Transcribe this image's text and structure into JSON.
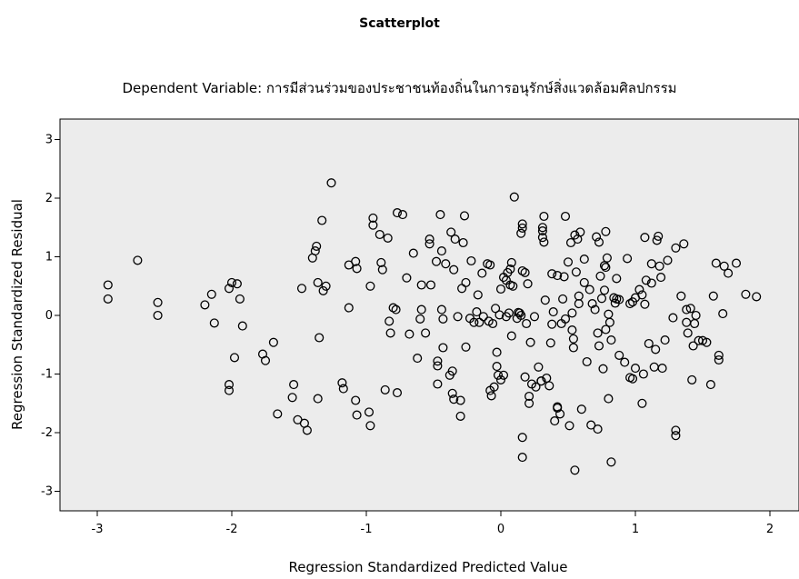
{
  "chart_data": {
    "type": "scatter",
    "title": "Scatterplot",
    "subtitle": "Dependent Variable: การมีส่วนร่วมของประชาชนท้องถิ่นในการอนุรักษ์สิ่งแวดล้อมศิลปกรรม",
    "xlabel": "Regression Standardized Predicted Value",
    "ylabel": "Regression Standardized Residual",
    "xlim": [
      -3.3,
      2.2
    ],
    "ylim": [
      -3.3,
      3.3
    ],
    "xticks": [
      -3,
      -2,
      -1,
      0,
      1,
      2
    ],
    "yticks": [
      -3,
      -2,
      -1,
      0,
      1,
      2,
      3
    ],
    "grid": false,
    "plot_background": "#ececec",
    "marker": "open-circle",
    "marker_color": "#000000",
    "points": [
      [
        -2.92,
        0.52
      ],
      [
        -2.92,
        0.28
      ],
      [
        -2.7,
        0.94
      ],
      [
        -2.55,
        0.22
      ],
      [
        -2.55,
        0.0
      ],
      [
        -2.2,
        0.18
      ],
      [
        -2.15,
        0.36
      ],
      [
        -2.13,
        -0.13
      ],
      [
        -2.02,
        0.46
      ],
      [
        -2.0,
        0.56
      ],
      [
        -1.96,
        0.54
      ],
      [
        -1.94,
        0.28
      ],
      [
        -1.92,
        -0.18
      ],
      [
        -1.98,
        -0.72
      ],
      [
        -2.02,
        -1.18
      ],
      [
        -2.02,
        -1.28
      ],
      [
        -1.77,
        -0.66
      ],
      [
        -1.75,
        -0.77
      ],
      [
        -1.69,
        -0.46
      ],
      [
        -1.66,
        -1.68
      ],
      [
        -1.54,
        -1.18
      ],
      [
        -1.55,
        -1.4
      ],
      [
        -1.51,
        -1.78
      ],
      [
        -1.48,
        0.46
      ],
      [
        -1.46,
        -1.84
      ],
      [
        -1.44,
        -1.96
      ],
      [
        -1.4,
        0.98
      ],
      [
        -1.38,
        1.1
      ],
      [
        -1.37,
        1.18
      ],
      [
        -1.36,
        0.56
      ],
      [
        -1.35,
        -0.38
      ],
      [
        -1.36,
        -1.42
      ],
      [
        -1.32,
        0.42
      ],
      [
        -1.33,
        1.62
      ],
      [
        -1.3,
        0.5
      ],
      [
        -1.26,
        2.26
      ],
      [
        -1.18,
        -1.15
      ],
      [
        -1.17,
        -1.25
      ],
      [
        -1.13,
        0.13
      ],
      [
        -1.13,
        0.86
      ],
      [
        -1.08,
        0.92
      ],
      [
        -1.07,
        0.8
      ],
      [
        -1.08,
        -1.45
      ],
      [
        -1.07,
        -1.7
      ],
      [
        -0.98,
        -1.65
      ],
      [
        -0.97,
        -1.88
      ],
      [
        -0.97,
        0.5
      ],
      [
        -0.95,
        1.54
      ],
      [
        -0.95,
        1.66
      ],
      [
        -0.9,
        1.38
      ],
      [
        -0.89,
        0.9
      ],
      [
        -0.88,
        0.78
      ],
      [
        -0.86,
        -1.27
      ],
      [
        -0.84,
        1.32
      ],
      [
        -0.83,
        -0.1
      ],
      [
        -0.82,
        -0.3
      ],
      [
        -0.8,
        0.13
      ],
      [
        -0.78,
        0.1
      ],
      [
        -0.77,
        -1.32
      ],
      [
        -0.77,
        1.75
      ],
      [
        -0.73,
        1.72
      ],
      [
        -0.7,
        0.64
      ],
      [
        -0.68,
        -0.32
      ],
      [
        -0.65,
        1.06
      ],
      [
        -0.62,
        -0.73
      ],
      [
        -0.6,
        -0.06
      ],
      [
        -0.59,
        0.52
      ],
      [
        -0.59,
        0.1
      ],
      [
        -0.56,
        -0.3
      ],
      [
        -0.53,
        1.3
      ],
      [
        -0.53,
        1.22
      ],
      [
        -0.52,
        0.52
      ],
      [
        -0.48,
        0.92
      ],
      [
        -0.47,
        -0.78
      ],
      [
        -0.47,
        -0.86
      ],
      [
        -0.47,
        -1.17
      ],
      [
        -0.45,
        1.72
      ],
      [
        -0.44,
        0.1
      ],
      [
        -0.43,
        -0.06
      ],
      [
        -0.44,
        1.1
      ],
      [
        -0.43,
        -0.55
      ],
      [
        -0.41,
        0.88
      ],
      [
        -0.38,
        -1.02
      ],
      [
        -0.37,
        1.42
      ],
      [
        -0.36,
        -0.95
      ],
      [
        -0.36,
        -1.33
      ],
      [
        -0.35,
        0.78
      ],
      [
        -0.35,
        -1.43
      ],
      [
        -0.34,
        1.3
      ],
      [
        -0.32,
        -0.02
      ],
      [
        -0.3,
        -1.72
      ],
      [
        -0.3,
        -1.45
      ],
      [
        -0.29,
        0.46
      ],
      [
        -0.28,
        1.24
      ],
      [
        -0.27,
        1.7
      ],
      [
        -0.26,
        0.56
      ],
      [
        -0.26,
        -0.54
      ],
      [
        -0.23,
        -0.05
      ],
      [
        -0.22,
        0.93
      ],
      [
        -0.2,
        -0.12
      ],
      [
        -0.18,
        0.06
      ],
      [
        -0.17,
        0.35
      ],
      [
        -0.16,
        -0.12
      ],
      [
        -0.14,
        0.72
      ],
      [
        -0.13,
        -0.02
      ],
      [
        -0.1,
        0.88
      ],
      [
        -0.09,
        -0.1
      ],
      [
        -0.08,
        0.86
      ],
      [
        -0.08,
        -1.28
      ],
      [
        -0.07,
        -1.37
      ],
      [
        -0.06,
        -0.14
      ],
      [
        -0.05,
        -1.22
      ],
      [
        -0.04,
        0.12
      ],
      [
        -0.03,
        -0.87
      ],
      [
        -0.03,
        -0.63
      ],
      [
        -0.02,
        -1.02
      ],
      [
        -0.01,
        0.01
      ],
      [
        0.0,
        0.45
      ],
      [
        0.0,
        -1.1
      ],
      [
        0.02,
        0.65
      ],
      [
        0.02,
        -1.02
      ],
      [
        0.04,
        0.6
      ],
      [
        0.04,
        -0.02
      ],
      [
        0.05,
        0.73
      ],
      [
        0.06,
        0.04
      ],
      [
        0.07,
        0.52
      ],
      [
        0.07,
        0.79
      ],
      [
        0.08,
        0.9
      ],
      [
        0.08,
        -0.35
      ],
      [
        0.09,
        0.5
      ],
      [
        0.1,
        2.02
      ],
      [
        0.12,
        -0.05
      ],
      [
        0.13,
        0.05
      ],
      [
        0.14,
        0.04
      ],
      [
        0.15,
        0.0
      ],
      [
        0.15,
        1.4
      ],
      [
        0.16,
        1.49
      ],
      [
        0.16,
        1.56
      ],
      [
        0.16,
        0.76
      ],
      [
        0.16,
        -2.42
      ],
      [
        0.16,
        -2.08
      ],
      [
        0.18,
        -1.05
      ],
      [
        0.18,
        0.73
      ],
      [
        0.19,
        -0.14
      ],
      [
        0.2,
        0.54
      ],
      [
        0.21,
        -1.38
      ],
      [
        0.21,
        -1.5
      ],
      [
        0.22,
        -0.46
      ],
      [
        0.23,
        -1.17
      ],
      [
        0.25,
        -0.02
      ],
      [
        0.26,
        -1.22
      ],
      [
        0.28,
        -0.88
      ],
      [
        0.3,
        -1.12
      ],
      [
        0.3,
        -1.12
      ],
      [
        0.31,
        1.5
      ],
      [
        0.31,
        1.44
      ],
      [
        0.31,
        1.33
      ],
      [
        0.32,
        1.25
      ],
      [
        0.32,
        1.69
      ],
      [
        0.33,
        0.26
      ],
      [
        0.34,
        -1.07
      ],
      [
        0.36,
        -1.2
      ],
      [
        0.37,
        -0.47
      ],
      [
        0.38,
        -0.15
      ],
      [
        0.38,
        0.71
      ],
      [
        0.39,
        0.06
      ],
      [
        0.4,
        -1.8
      ],
      [
        0.42,
        0.68
      ],
      [
        0.42,
        -1.56
      ],
      [
        0.42,
        -1.58
      ],
      [
        0.44,
        -1.68
      ],
      [
        0.45,
        -0.14
      ],
      [
        0.46,
        0.28
      ],
      [
        0.47,
        0.66
      ],
      [
        0.48,
        1.69
      ],
      [
        0.48,
        -0.06
      ],
      [
        0.5,
        0.91
      ],
      [
        0.51,
        -1.88
      ],
      [
        0.52,
        1.24
      ],
      [
        0.53,
        0.04
      ],
      [
        0.53,
        -0.25
      ],
      [
        0.54,
        -0.4
      ],
      [
        0.54,
        -0.55
      ],
      [
        0.55,
        1.37
      ],
      [
        0.55,
        -2.64
      ],
      [
        0.56,
        0.74
      ],
      [
        0.57,
        1.3
      ],
      [
        0.58,
        0.33
      ],
      [
        0.58,
        0.2
      ],
      [
        0.59,
        1.42
      ],
      [
        0.6,
        -1.6
      ],
      [
        0.62,
        0.56
      ],
      [
        0.62,
        0.96
      ],
      [
        0.64,
        -0.79
      ],
      [
        0.66,
        0.44
      ],
      [
        0.67,
        -1.87
      ],
      [
        0.68,
        0.2
      ],
      [
        0.7,
        0.1
      ],
      [
        0.71,
        1.34
      ],
      [
        0.72,
        -0.3
      ],
      [
        0.72,
        -1.94
      ],
      [
        0.73,
        1.25
      ],
      [
        0.73,
        -0.52
      ],
      [
        0.74,
        0.67
      ],
      [
        0.75,
        0.29
      ],
      [
        0.76,
        -0.91
      ],
      [
        0.77,
        0.85
      ],
      [
        0.77,
        0.43
      ],
      [
        0.78,
        1.43
      ],
      [
        0.78,
        0.82
      ],
      [
        0.78,
        -0.24
      ],
      [
        0.79,
        0.98
      ],
      [
        0.8,
        -1.42
      ],
      [
        0.8,
        0.02
      ],
      [
        0.81,
        -0.12
      ],
      [
        0.82,
        -2.5
      ],
      [
        0.82,
        -0.42
      ],
      [
        0.84,
        0.3
      ],
      [
        0.85,
        0.21
      ],
      [
        0.86,
        0.28
      ],
      [
        0.86,
        0.63
      ],
      [
        0.88,
        0.27
      ],
      [
        0.88,
        -0.68
      ],
      [
        0.92,
        -0.8
      ],
      [
        0.94,
        0.97
      ],
      [
        0.96,
        -1.06
      ],
      [
        0.96,
        0.2
      ],
      [
        0.98,
        -1.08
      ],
      [
        0.98,
        0.23
      ],
      [
        1.0,
        -0.9
      ],
      [
        1.0,
        0.3
      ],
      [
        1.03,
        0.44
      ],
      [
        1.05,
        -1.5
      ],
      [
        1.05,
        0.35
      ],
      [
        1.06,
        -1.0
      ],
      [
        1.07,
        0.19
      ],
      [
        1.07,
        1.33
      ],
      [
        1.08,
        0.6
      ],
      [
        1.1,
        -0.48
      ],
      [
        1.12,
        0.55
      ],
      [
        1.12,
        0.88
      ],
      [
        1.14,
        -0.88
      ],
      [
        1.15,
        -0.58
      ],
      [
        1.16,
        1.28
      ],
      [
        1.17,
        1.35
      ],
      [
        1.18,
        0.84
      ],
      [
        1.19,
        0.65
      ],
      [
        1.2,
        -0.9
      ],
      [
        1.22,
        -0.42
      ],
      [
        1.24,
        0.94
      ],
      [
        1.28,
        -0.04
      ],
      [
        1.3,
        1.15
      ],
      [
        1.3,
        -2.05
      ],
      [
        1.3,
        -1.96
      ],
      [
        1.34,
        0.33
      ],
      [
        1.36,
        1.22
      ],
      [
        1.38,
        0.1
      ],
      [
        1.38,
        -0.12
      ],
      [
        1.39,
        -0.3
      ],
      [
        1.41,
        0.12
      ],
      [
        1.42,
        -1.1
      ],
      [
        1.43,
        -0.52
      ],
      [
        1.44,
        -0.14
      ],
      [
        1.45,
        0.0
      ],
      [
        1.47,
        -0.43
      ],
      [
        1.5,
        -0.43
      ],
      [
        1.53,
        -0.46
      ],
      [
        1.56,
        -1.18
      ],
      [
        1.58,
        0.33
      ],
      [
        1.6,
        0.89
      ],
      [
        1.62,
        -0.68
      ],
      [
        1.62,
        -0.76
      ],
      [
        1.65,
        0.03
      ],
      [
        1.66,
        0.84
      ],
      [
        1.69,
        0.72
      ],
      [
        1.75,
        0.89
      ],
      [
        1.82,
        0.36
      ],
      [
        1.9,
        0.32
      ]
    ]
  }
}
